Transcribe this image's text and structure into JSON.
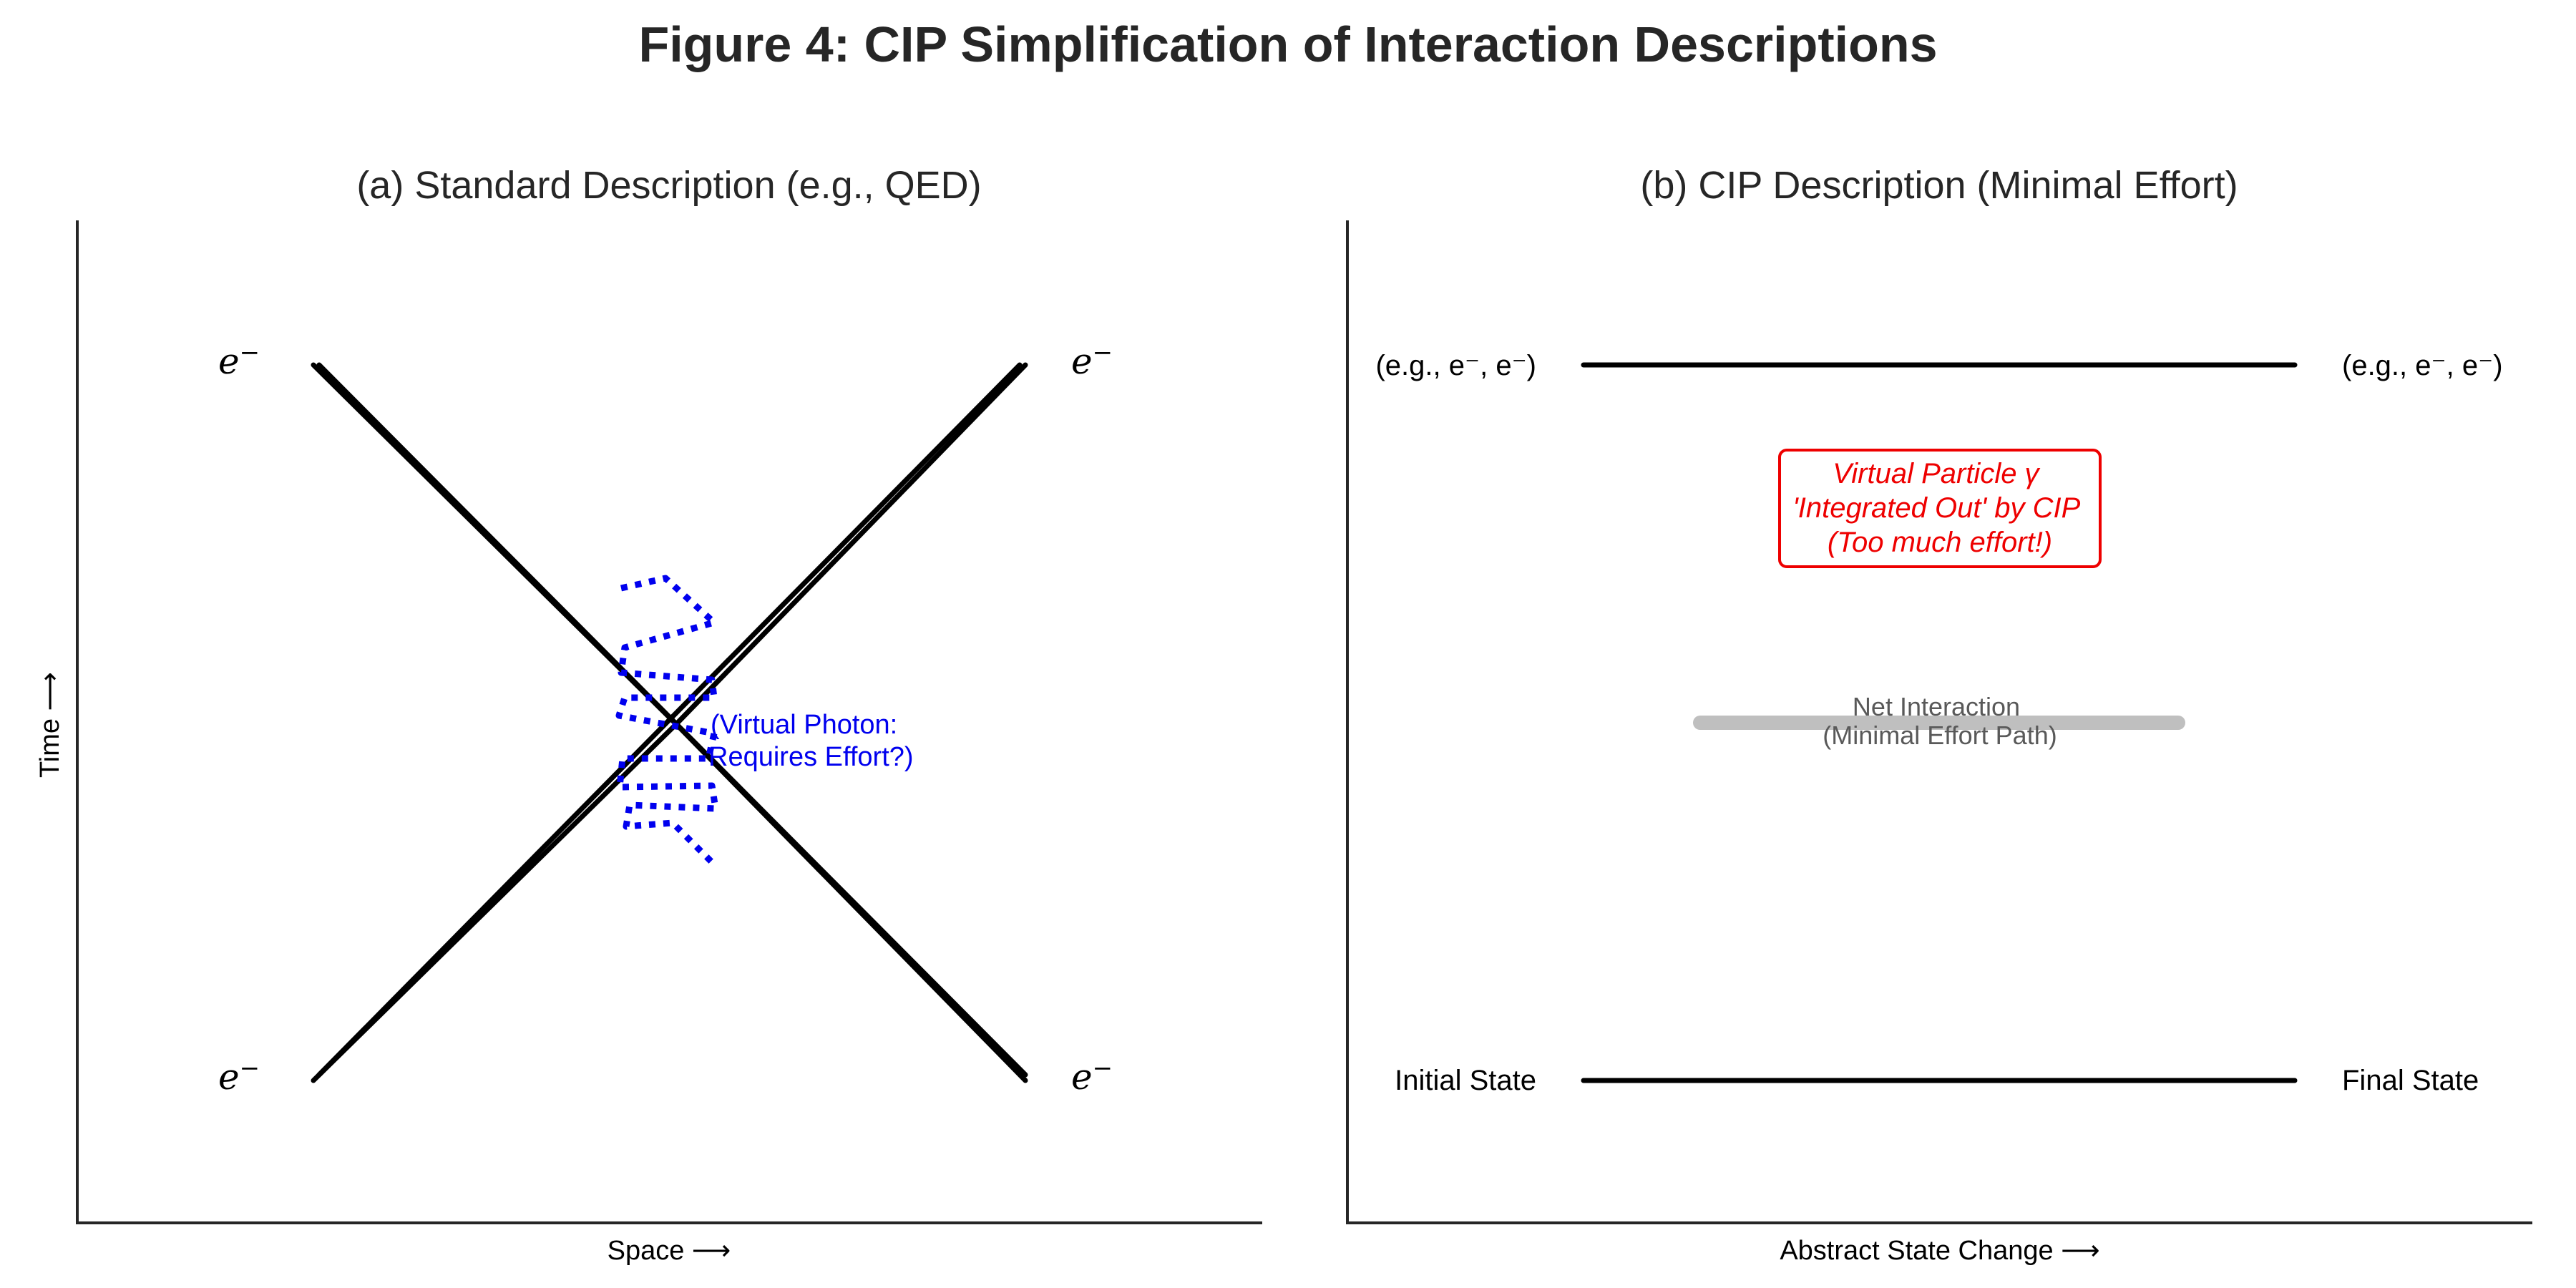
{
  "figure_title": "Figure 4: CIP Simplification of Interaction Descriptions",
  "panel_a": {
    "title": "(a) Standard Description (e.g., QED)",
    "y_axis_label": "Time ⟶",
    "x_axis_label": "Space ⟶",
    "particle_label": "e",
    "particle_sup": "−",
    "photon_annotation": [
      "(Virtual Photon:",
      "Requires Effort?)"
    ],
    "photon_color": "#0000ee"
  },
  "panel_b": {
    "title": "(b) CIP Description (Minimal Effort)",
    "x_axis_label": "Abstract State Change ⟶",
    "top_left_label": "(e.g., e⁻, e⁻)",
    "top_right_label": "(e.g., e⁻, e⁻)",
    "bottom_left_label": "Initial State",
    "bottom_right_label": "Final State",
    "virtual_box_lines": [
      "Virtual Particle γ",
      "'Integrated Out' by CIP",
      "(Too much effort!)"
    ],
    "virtual_box_color": "#ee0000",
    "net_interaction_lines": [
      "Net Interaction",
      "(Minimal Effort Path)"
    ],
    "net_path_color": "#bfbfbf"
  }
}
